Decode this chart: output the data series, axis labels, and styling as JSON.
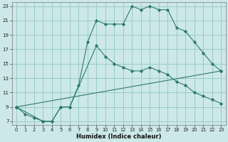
{
  "xlabel": "Humidex (Indice chaleur)",
  "bg_color": "#cce8e8",
  "grid_color": "#99cccc",
  "line_color": "#2d7a6e",
  "marker": "D",
  "marker_size": 2.2,
  "xlim": [
    -0.5,
    23.5
  ],
  "ylim": [
    6.5,
    23.5
  ],
  "xticks": [
    0,
    1,
    2,
    3,
    4,
    5,
    6,
    7,
    8,
    9,
    10,
    11,
    12,
    13,
    14,
    15,
    16,
    17,
    18,
    19,
    20,
    21,
    22,
    23
  ],
  "yticks": [
    7,
    9,
    11,
    13,
    15,
    17,
    19,
    21,
    23
  ],
  "line1_x": [
    0,
    1,
    2,
    3,
    4,
    5,
    6,
    7,
    8,
    9,
    10,
    11,
    12,
    13,
    14,
    15,
    16,
    17,
    18,
    19,
    20,
    21,
    22,
    23
  ],
  "line1_y": [
    9,
    8,
    7.5,
    7,
    7,
    9,
    9,
    12,
    18,
    21,
    20.5,
    20.5,
    20.5,
    23,
    22.5,
    23,
    22.5,
    22.5,
    20,
    19.5,
    18,
    16.5,
    15,
    14
  ],
  "line2_x": [
    0,
    3,
    4,
    5,
    6,
    9,
    10,
    11,
    12,
    13,
    14,
    15,
    16,
    17,
    18,
    19,
    20,
    21,
    22,
    23
  ],
  "line2_y": [
    9,
    7,
    7,
    9,
    9,
    17.5,
    16,
    15,
    14.5,
    14,
    14,
    14.5,
    14,
    13.5,
    12.5,
    12,
    11,
    10.5,
    10,
    9.5
  ],
  "line3_x": [
    0,
    23
  ],
  "line3_y": [
    9,
    14
  ]
}
